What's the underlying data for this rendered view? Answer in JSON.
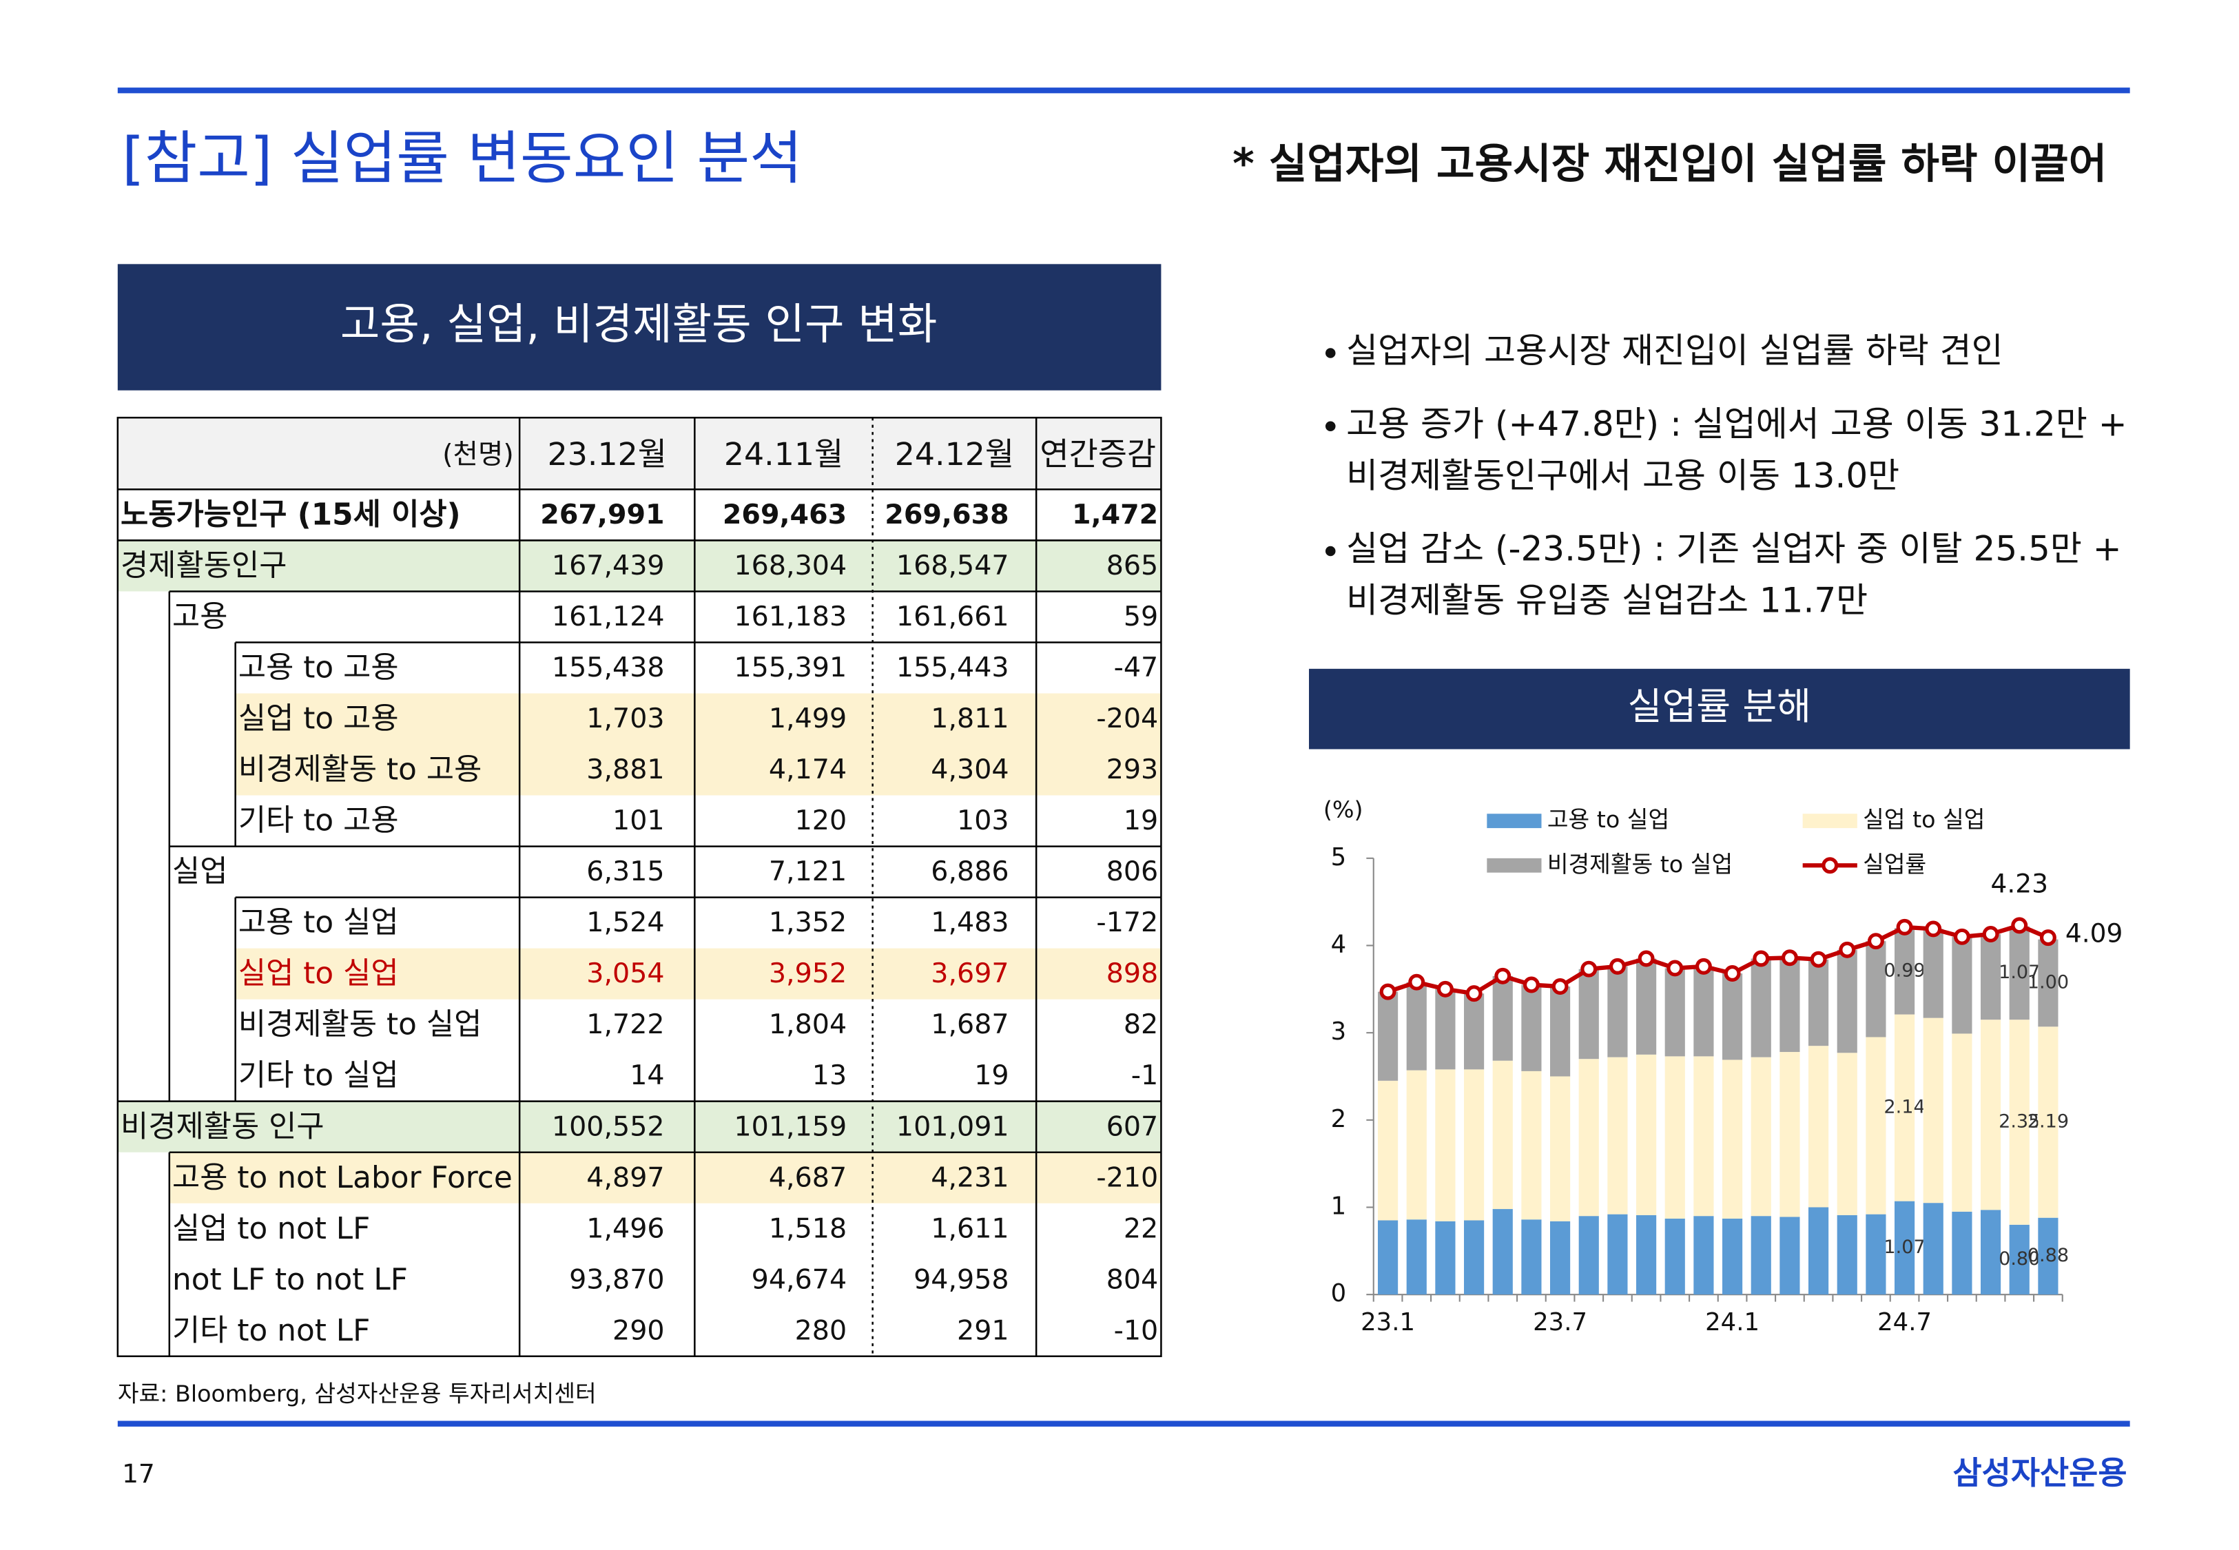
{
  "header": {
    "title": "[참고] 실업률 변동요인 분석",
    "subtitle": "* 실업자의 고용시장 재진입이 실업률 하락 이끌어"
  },
  "table": {
    "title": "고용, 실업, 비경제활동 인구 변화",
    "header": [
      "(천명)",
      "23.12월",
      "24.11월",
      "24.12월",
      "연간증감"
    ],
    "rows": [
      {
        "label": "노동가능인구 (15세 이상)",
        "values": [
          "267,991",
          "269,463",
          "269,638",
          "1,472"
        ]
      },
      {
        "label": "경제활동인구",
        "values": [
          "167,439",
          "168,304",
          "168,547",
          "865"
        ]
      },
      {
        "label": "고용",
        "values": [
          "161,124",
          "161,183",
          "161,661",
          "59"
        ]
      },
      {
        "label": "고용 to 고용",
        "values": [
          "155,438",
          "155,391",
          "155,443",
          "-47"
        ]
      },
      {
        "label": "실업 to 고용",
        "values": [
          "1,703",
          "1,499",
          "1,811",
          "-204"
        ]
      },
      {
        "label": "비경제활동 to 고용",
        "values": [
          "3,881",
          "4,174",
          "4,304",
          "293"
        ]
      },
      {
        "label": "기타 to 고용",
        "values": [
          "101",
          "120",
          "103",
          "19"
        ]
      },
      {
        "label": "실업",
        "values": [
          "6,315",
          "7,121",
          "6,886",
          "806"
        ]
      },
      {
        "label": "고용 to 실업",
        "values": [
          "1,524",
          "1,352",
          "1,483",
          "-172"
        ]
      },
      {
        "label": "실업 to 실업",
        "values": [
          "3,054",
          "3,952",
          "3,697",
          "898"
        ]
      },
      {
        "label": "비경제활동 to 실업",
        "values": [
          "1,722",
          "1,804",
          "1,687",
          "82"
        ]
      },
      {
        "label": "기타 to 실업",
        "values": [
          "14",
          "13",
          "19",
          "-1"
        ]
      },
      {
        "label": "비경제활동 인구",
        "values": [
          "100,552",
          "101,159",
          "101,091",
          "607"
        ]
      },
      {
        "label": "고용 to not Labor Force",
        "values": [
          "4,897",
          "4,687",
          "4,231",
          "-210"
        ]
      },
      {
        "label": "실업 to not LF",
        "values": [
          "1,496",
          "1,518",
          "1,611",
          "22"
        ]
      },
      {
        "label": "not LF to not LF",
        "values": [
          "93,870",
          "94,674",
          "94,958",
          "804"
        ]
      },
      {
        "label": "기타 to not LF",
        "values": [
          "290",
          "280",
          "291",
          "-10"
        ]
      }
    ]
  },
  "bullets": [
    [
      "실업자의 고용시장 재진입이 실업률 하락 견인"
    ],
    [
      "고용 증가 (+47.8만) : 실업에서 고용 이동 31.2만 +",
      "비경제활동인구에서 고용 이동 13.0만"
    ],
    [
      "실업 감소 (-23.5만) : 기존 실업자 중 이탈 25.5만 +",
      "비경제활동 유입중 실업감소 11.7만"
    ]
  ],
  "chart_data": {
    "type": "combo",
    "title": "실업률 분해",
    "y_label": "(%)",
    "categories": [
      "23.1",
      null,
      null,
      null,
      null,
      null,
      "23.7",
      null,
      null,
      null,
      null,
      null,
      "24.1",
      null,
      null,
      null,
      null,
      null,
      "24.7",
      null,
      null,
      null,
      null,
      null
    ],
    "ylim": [
      0,
      5
    ],
    "yticks": [
      0,
      1,
      2,
      3,
      4,
      5
    ],
    "series": [
      {
        "name": "고용 to 실업",
        "type": "bar",
        "color": "#5b9bd5",
        "values": [
          0.85,
          0.86,
          0.84,
          0.85,
          0.98,
          0.86,
          0.84,
          0.9,
          0.92,
          0.91,
          0.87,
          0.9,
          0.87,
          0.9,
          0.89,
          1.0,
          0.91,
          0.92,
          1.07,
          1.05,
          0.95,
          0.97,
          0.8,
          0.88
        ],
        "value_labels": [
          null,
          null,
          null,
          null,
          null,
          null,
          null,
          null,
          null,
          null,
          null,
          null,
          null,
          null,
          null,
          null,
          null,
          null,
          "1.07",
          null,
          null,
          null,
          "0.80",
          "0.88"
        ]
      },
      {
        "name": "실업 to 실업",
        "type": "bar",
        "color": "#fff2cc",
        "values": [
          1.6,
          1.71,
          1.74,
          1.73,
          1.7,
          1.7,
          1.66,
          1.8,
          1.8,
          1.84,
          1.86,
          1.83,
          1.82,
          1.82,
          1.89,
          1.85,
          1.86,
          2.03,
          2.14,
          2.12,
          2.04,
          2.18,
          2.35,
          2.19
        ],
        "value_labels": [
          null,
          null,
          null,
          null,
          null,
          null,
          null,
          null,
          null,
          null,
          null,
          null,
          null,
          null,
          null,
          null,
          null,
          null,
          "2.14",
          null,
          null,
          null,
          "2.35",
          "2.19"
        ]
      },
      {
        "name": "비경제활동 to 실업",
        "type": "bar",
        "color": "#a5a5a5",
        "values": [
          1.02,
          1.01,
          0.92,
          0.87,
          0.97,
          0.99,
          1.03,
          1.03,
          1.04,
          1.1,
          1.01,
          1.03,
          0.99,
          1.13,
          1.08,
          0.99,
          1.18,
          1.1,
          0.99,
          1.02,
          1.11,
          0.98,
          1.07,
          1.0
        ],
        "value_labels": [
          null,
          null,
          null,
          null,
          null,
          null,
          null,
          null,
          null,
          null,
          null,
          null,
          null,
          null,
          null,
          null,
          null,
          null,
          "0.99",
          null,
          null,
          null,
          "1.07",
          "1.00"
        ]
      },
      {
        "name": "실업률",
        "type": "line",
        "color": "#c00000",
        "values": [
          3.47,
          3.58,
          3.5,
          3.45,
          3.65,
          3.55,
          3.53,
          3.73,
          3.76,
          3.85,
          3.74,
          3.76,
          3.68,
          3.85,
          3.86,
          3.84,
          3.95,
          4.05,
          4.21,
          4.19,
          4.1,
          4.13,
          4.23,
          4.09
        ],
        "value_labels": [
          null,
          null,
          null,
          null,
          null,
          null,
          null,
          null,
          null,
          null,
          null,
          null,
          null,
          null,
          null,
          null,
          null,
          null,
          null,
          null,
          null,
          null,
          "4.23",
          "4.09"
        ]
      }
    ]
  },
  "footer": {
    "source": "자료: Bloomberg, 삼성자산운용 투자리서치센터",
    "page": "17",
    "brand": "삼성자산운용"
  }
}
